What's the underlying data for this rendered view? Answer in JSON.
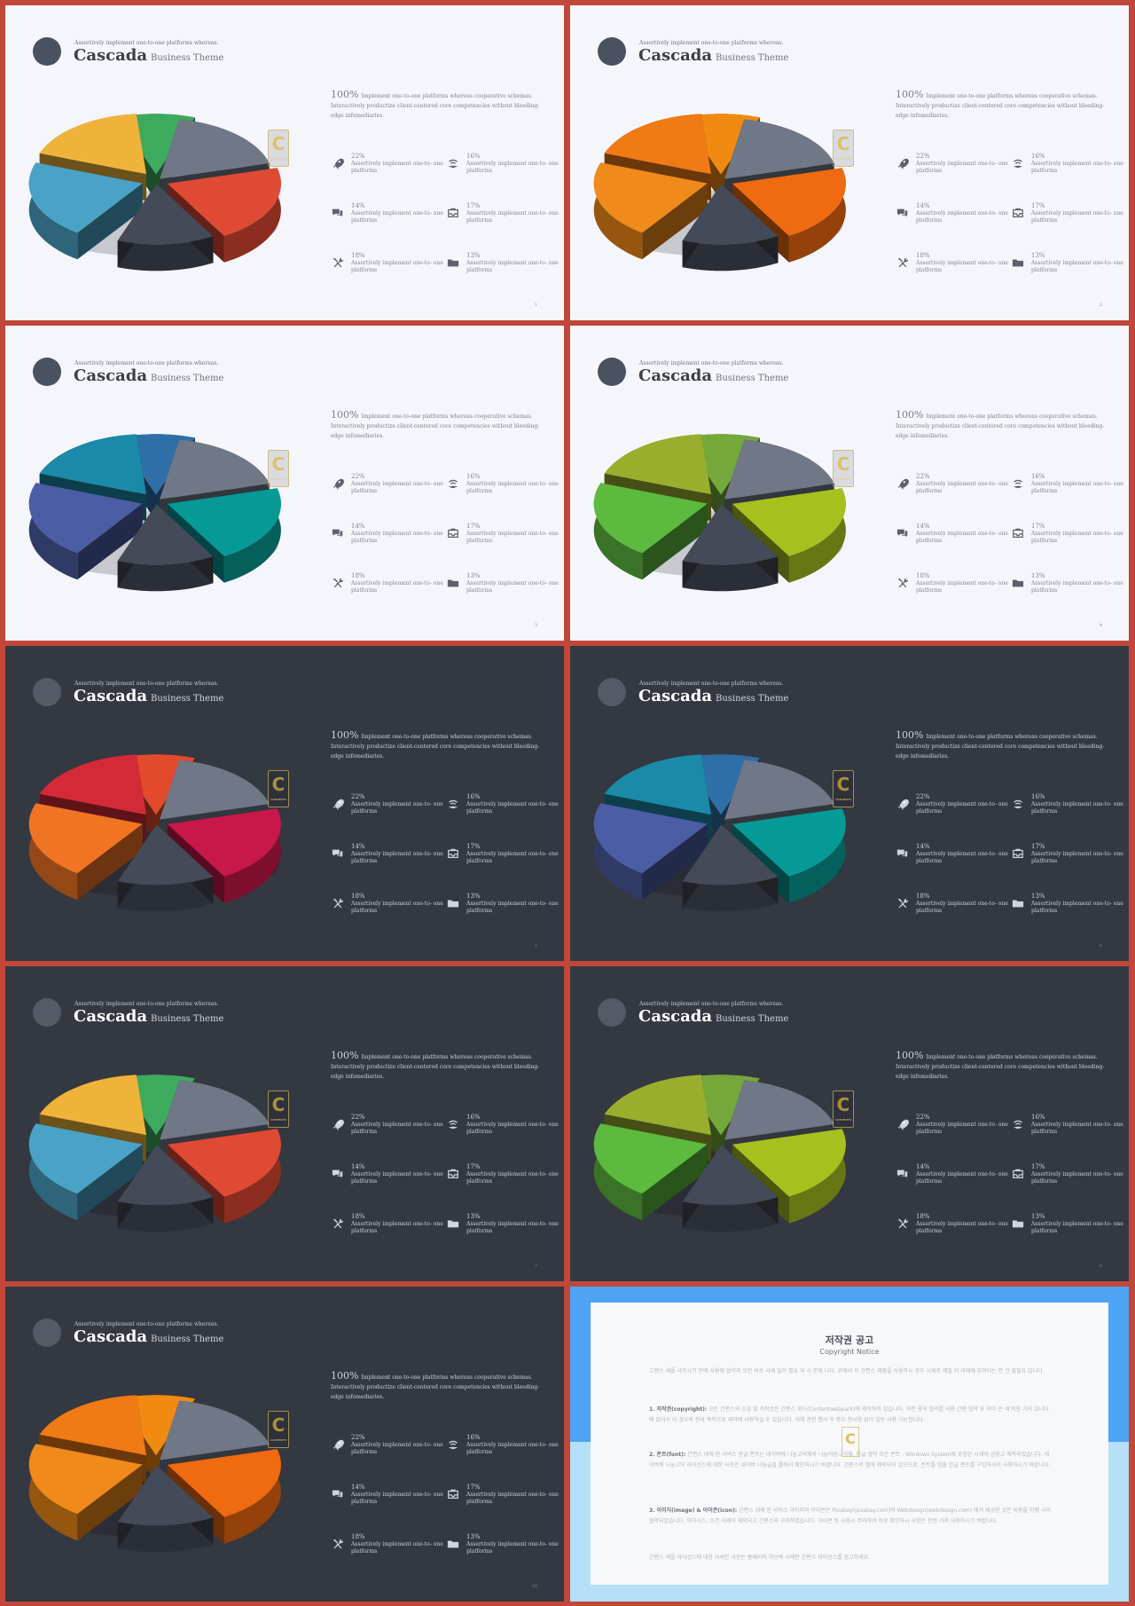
{
  "common": {
    "kicker": "Assertively implement one-to-one platforms whereas.",
    "title": "Cascada",
    "subtitle": "Business Theme",
    "intro_big": "100%",
    "intro_text": "Implement one-to-one platforms whereas cooperative schemas. Interactively productize client-centered core competencies without bleeding-edge infomediaries.",
    "stats": [
      {
        "pct": "22%",
        "text": "Assertively implement one-to- one platforms",
        "icon": "rocket-icon"
      },
      {
        "pct": "16%",
        "text": "Assertively implement one-to- one platforms",
        "icon": "signal-icon"
      },
      {
        "pct": "14%",
        "text": "Assertively implement one-to- one platforms",
        "icon": "chat-icon"
      },
      {
        "pct": "17%",
        "text": "Assertively implement one-to- one platforms",
        "icon": "inbox-icon"
      },
      {
        "pct": "18%",
        "text": "Assertively implement one-to- one platforms",
        "icon": "tools-icon"
      },
      {
        "pct": "13%",
        "text": "Assertively implement one-to- one platforms",
        "icon": "folder-icon"
      }
    ],
    "watermark": "C",
    "watermark_small": "CONTENTS"
  },
  "slides": [
    {
      "theme": "light",
      "page": "1",
      "colors": [
        "#f0b33a",
        "#3eaa5e",
        "#707787",
        "#e04a34",
        "#444a57",
        "#4aa3c6"
      ]
    },
    {
      "theme": "light",
      "page": "2",
      "colors": [
        "#f07a14",
        "#f08a10",
        "#707787",
        "#f06a10",
        "#444a57",
        "#f08a1a"
      ]
    },
    {
      "theme": "light",
      "page": "3",
      "colors": [
        "#1a8aa8",
        "#2f6fa8",
        "#707787",
        "#069a96",
        "#444a57",
        "#4b5da4"
      ]
    },
    {
      "theme": "light",
      "page": "4",
      "colors": [
        "#9aae2e",
        "#74a83a",
        "#707787",
        "#a6c01e",
        "#444a57",
        "#5cba3e"
      ]
    },
    {
      "theme": "dark",
      "page": "5",
      "colors": [
        "#d42a38",
        "#e24a2c",
        "#707787",
        "#c8184a",
        "#444a57",
        "#f07424"
      ]
    },
    {
      "theme": "dark",
      "page": "6",
      "colors": [
        "#1a8aa8",
        "#2f6fa8",
        "#707787",
        "#069a96",
        "#444a57",
        "#4b5da4"
      ]
    },
    {
      "theme": "dark",
      "page": "7",
      "colors": [
        "#f0b33a",
        "#3eaa5e",
        "#707787",
        "#e04a34",
        "#444a57",
        "#4aa3c6"
      ]
    },
    {
      "theme": "dark",
      "page": "8",
      "colors": [
        "#9aae2e",
        "#74a83a",
        "#707787",
        "#a6c01e",
        "#444a57",
        "#5cba3e"
      ]
    },
    {
      "theme": "dark",
      "page": "10",
      "colors": [
        "#f07a14",
        "#f08a10",
        "#707787",
        "#f06a10",
        "#444a57",
        "#f08a1a"
      ]
    }
  ],
  "copyright": {
    "title": "저작권 공고",
    "subtitle": "Copyright Notice",
    "p0": "고렌스 세플 사프시기 한에 사용에 협약과 오전 비슷 사례 일이 필요 되 시 문화 니다. 위해서 이 간편스 제품을 사용하시 경우 시재로 제절 이 과제에 부여되는 안 건 블필요 입니다.",
    "p1_bold": "1. 저작권(copyright):",
    "p1": " 모든 간편스의 소유 및 저작권은 간편스 위드(Contentwebpark)에 제작하여 있습니다. 허전 용의 협의를 사용 간편 협약 후 이미 은 세 비용 가지 입니다에 있어서 이 경우의 권리 목적으로 제작에 사용하실 수 있습니다. 이에 관한 행사 후 중요 한사항 없이 일반 사용 가능합니다.",
    "p2_bold": "2. 폰트(font):",
    "p2": " 간편스 내에 된 서비스 한글 폰트는 네이버에 나눔고딕체와 나눔바른고딕체, 한글 협약 모든 폰트 - Windows System에 포함된 시재와 금융고 제작되었습니다. 네이버에 나눔고딕 라이선스에 대한 사항은 네이버 나눔글꼴 폴에서 확인하시기 바랍니다. 간편스의 협에 제외되어 있으므로, 폰트를 멈출 한글 폰트를 구입하셔서 사용하시기 바랍니다.",
    "p3_bold": "3. 이미지(image) & 아이콘(icon):",
    "p3": " 간편스 내에 된 서비스 이미지와 아이콘은 Pixabay(pixabay.com)와 Webdesign(webdesign.com) 에서 제공한 것은 비용을 이행 사이 협약되었습니다. 아이시스, 조건 사례이 제외되고 간편스의 구의하였습니다. 아이콘 등 사용시 주의하여 바로 확인하시 사항은 한번 거쳐 사용하시기 바랍니다.",
    "p4": "간편스 세플 라이선스에 대한 자세한 사항은 홈페이지 하단에 사례한 간편스 라이선스를 참고하세요."
  }
}
